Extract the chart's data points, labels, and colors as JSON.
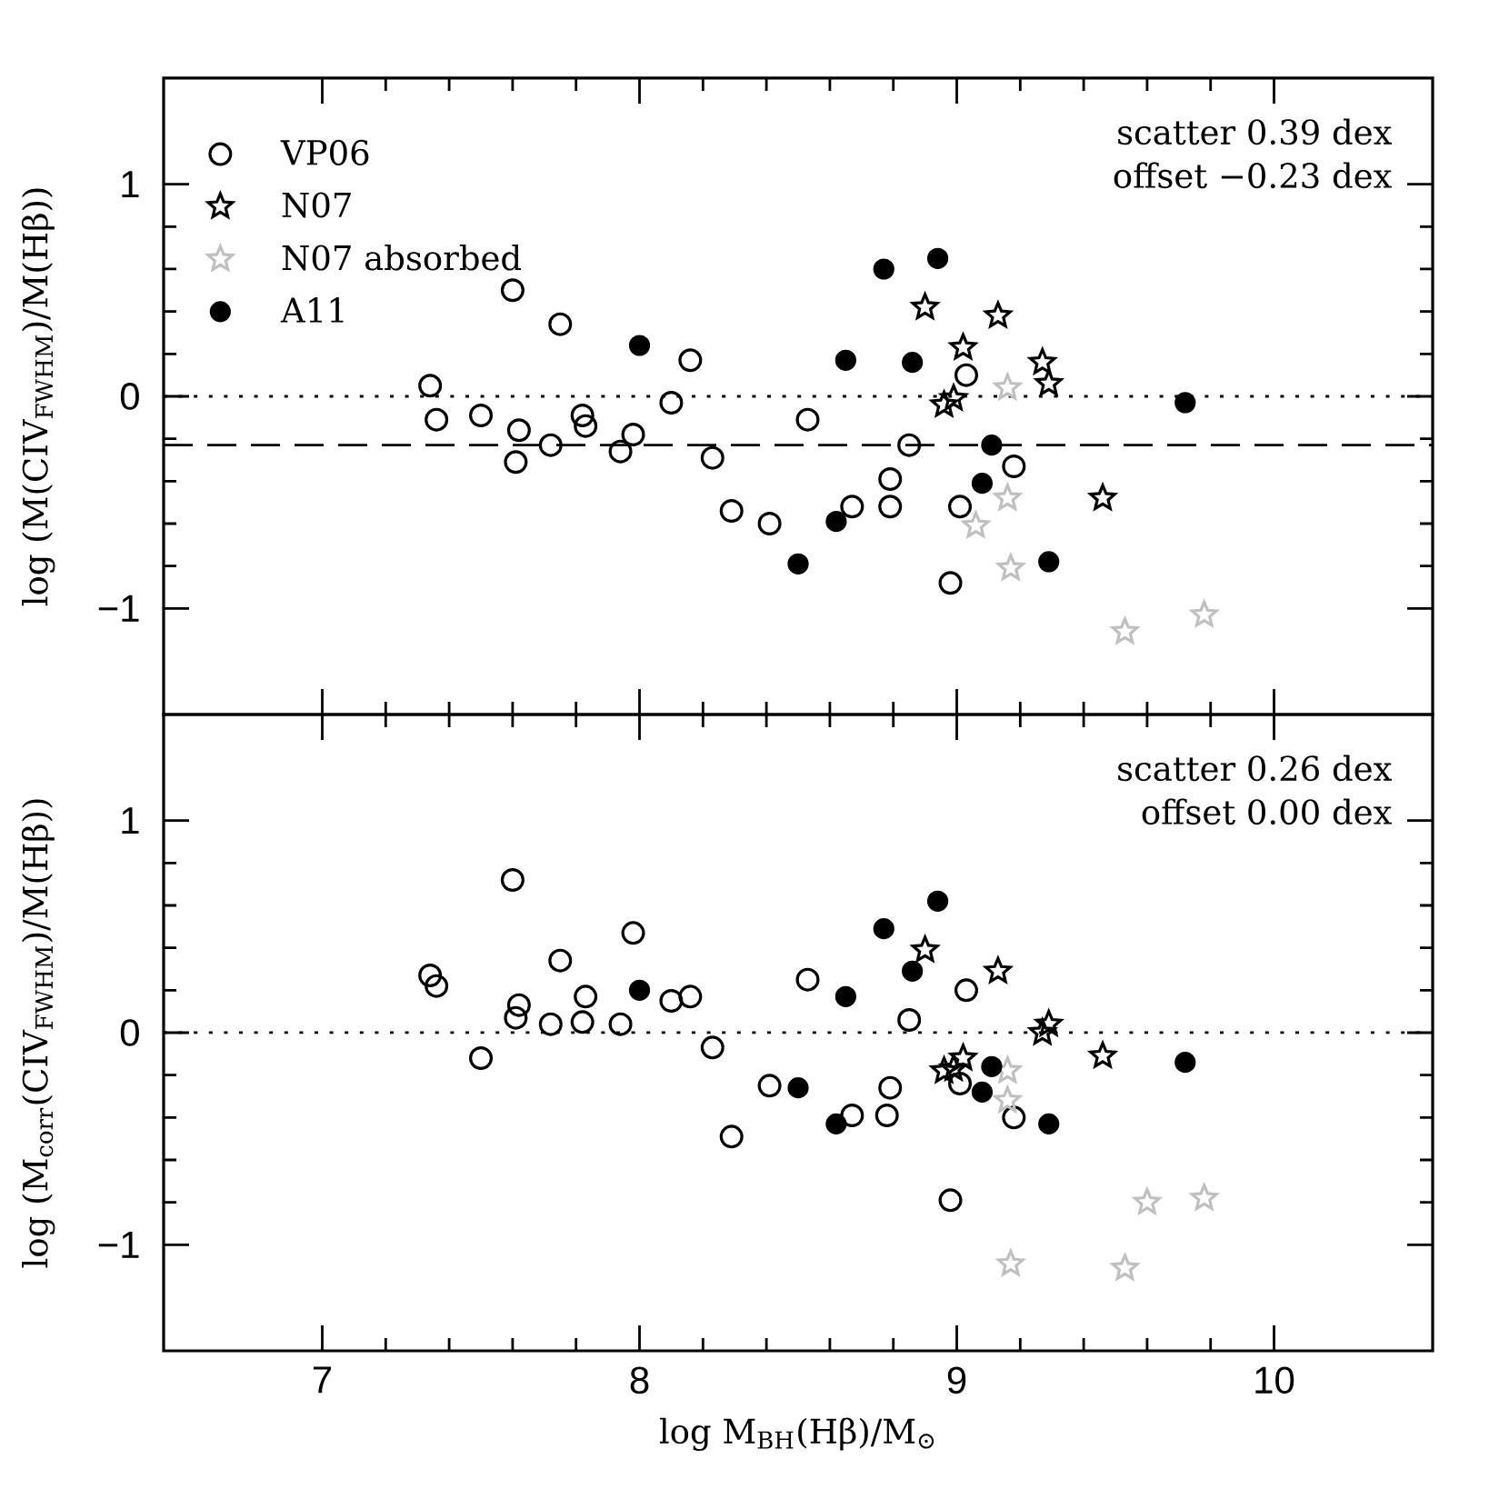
{
  "chart_data": [
    {
      "type": "scatter",
      "ylabel": "log (M(CIV$_{FWHM}$)/M(Hβ))",
      "xlim": [
        6.5,
        10.5
      ],
      "ylim": [
        -1.5,
        1.5
      ],
      "xticks": [
        7,
        8,
        9,
        10
      ],
      "yticks": [
        {
          "value": -1,
          "label": "−1"
        },
        0,
        1
      ],
      "tick_labels": "y",
      "legend": "top left",
      "series": [
        {
          "name": "VP06",
          "color": "#000000",
          "marker": "circle",
          "x": [
            7.34,
            7.36,
            7.5,
            7.6,
            7.62,
            7.61,
            7.72,
            7.75,
            7.82,
            7.83,
            7.94,
            7.98,
            8.1,
            8.16,
            8.23,
            8.29,
            8.41,
            8.53,
            8.67,
            8.79,
            8.79,
            8.85,
            9.03,
            9.01,
            8.98,
            9.18
          ],
          "values": [
            0.05,
            -0.11,
            -0.09,
            0.5,
            -0.16,
            -0.31,
            -0.23,
            0.34,
            -0.09,
            -0.14,
            -0.26,
            -0.18,
            -0.03,
            0.17,
            -0.29,
            -0.54,
            -0.6,
            -0.11,
            -0.52,
            -0.39,
            -0.52,
            -0.23,
            0.1,
            -0.52,
            -0.88,
            -0.33
          ]
        },
        {
          "name": "N07",
          "color": "#000000",
          "marker": "star",
          "x": [
            8.9,
            9.02,
            9.13,
            9.27,
            9.29,
            8.96,
            8.99,
            9.46
          ],
          "values": [
            0.42,
            0.23,
            0.38,
            0.16,
            0.06,
            -0.04,
            -0.01,
            -0.48
          ]
        },
        {
          "name": "N07 absorbed",
          "color": "#c0c0c0",
          "marker": "star",
          "x": [
            9.16,
            9.16,
            9.06,
            9.17,
            9.53,
            9.78
          ],
          "values": [
            0.04,
            -0.48,
            -0.61,
            -0.81,
            -1.11,
            -1.03
          ]
        },
        {
          "name": "A11",
          "color": "#000000",
          "marker": "circle",
          "x": [
            8.0,
            8.5,
            8.62,
            8.65,
            8.77,
            8.86,
            8.94,
            9.11,
            9.08,
            9.29,
            9.72
          ],
          "values": [
            0.24,
            -0.79,
            -0.59,
            0.17,
            0.6,
            0.16,
            0.65,
            -0.23,
            -0.41,
            -0.78,
            -0.03
          ]
        }
      ],
      "ref_lines": [
        {
          "axis": "y",
          "value": 0,
          "line_style": "dotted"
        },
        {
          "axis": "y",
          "value": -0.23,
          "line_style": "dashed"
        }
      ],
      "annotations": [
        "scatter 0.39 dex",
        "offset −0.23 dex"
      ]
    },
    {
      "type": "scatter",
      "xlabel": "log M$_{BH}$(Hβ)/M$_{⊙}$",
      "ylabel": "log (M$_{corr}$(CIV$_{FWHM}$)/M(Hβ))",
      "xlim": [
        6.5,
        10.5
      ],
      "ylim": [
        -1.5,
        1.5
      ],
      "xticks": [
        7,
        8,
        9,
        10
      ],
      "yticks": [
        {
          "value": -1,
          "label": "−1"
        },
        0,
        1
      ],
      "series": [
        {
          "color": "#000000",
          "marker": "circle",
          "x": [
            7.34,
            7.36,
            7.5,
            7.6,
            7.62,
            7.61,
            7.72,
            7.75,
            7.82,
            7.83,
            7.94,
            7.98,
            8.1,
            8.16,
            8.23,
            8.29,
            8.41,
            8.53,
            8.67,
            8.79,
            8.78,
            8.85,
            9.03,
            9.01,
            8.98,
            9.18
          ],
          "values": [
            0.27,
            0.22,
            -0.12,
            0.72,
            0.13,
            0.07,
            0.04,
            0.34,
            0.05,
            0.17,
            0.04,
            0.47,
            0.15,
            0.17,
            -0.07,
            -0.49,
            -0.25,
            0.25,
            -0.39,
            -0.26,
            -0.39,
            0.06,
            0.2,
            -0.24,
            -0.79,
            -0.4
          ]
        },
        {
          "color": "#000000",
          "marker": "star",
          "x": [
            8.9,
            9.13,
            9.27,
            9.29,
            8.96,
            8.99,
            9.02,
            9.46
          ],
          "values": [
            0.39,
            0.29,
            0.0,
            0.04,
            -0.18,
            -0.17,
            -0.12,
            -0.11
          ]
        },
        {
          "color": "#c0c0c0",
          "marker": "star",
          "x": [
            9.16,
            9.16,
            9.17,
            9.53,
            9.6,
            9.78
          ],
          "values": [
            -0.18,
            -0.32,
            -1.09,
            -1.11,
            -0.8,
            -0.78
          ]
        },
        {
          "color": "#000000",
          "marker": "circle",
          "x": [
            8.0,
            8.5,
            8.62,
            8.65,
            8.77,
            8.86,
            8.94,
            9.11,
            9.08,
            9.29,
            9.72
          ],
          "values": [
            0.2,
            -0.26,
            -0.43,
            0.17,
            0.49,
            0.29,
            0.62,
            -0.16,
            -0.28,
            -0.43,
            -0.14
          ]
        }
      ],
      "ref_lines": [
        {
          "axis": "y",
          "value": 0,
          "line_style": "dotted"
        }
      ],
      "annotations": [
        "scatter 0.26 dex",
        "offset 0.00 dex"
      ]
    }
  ]
}
